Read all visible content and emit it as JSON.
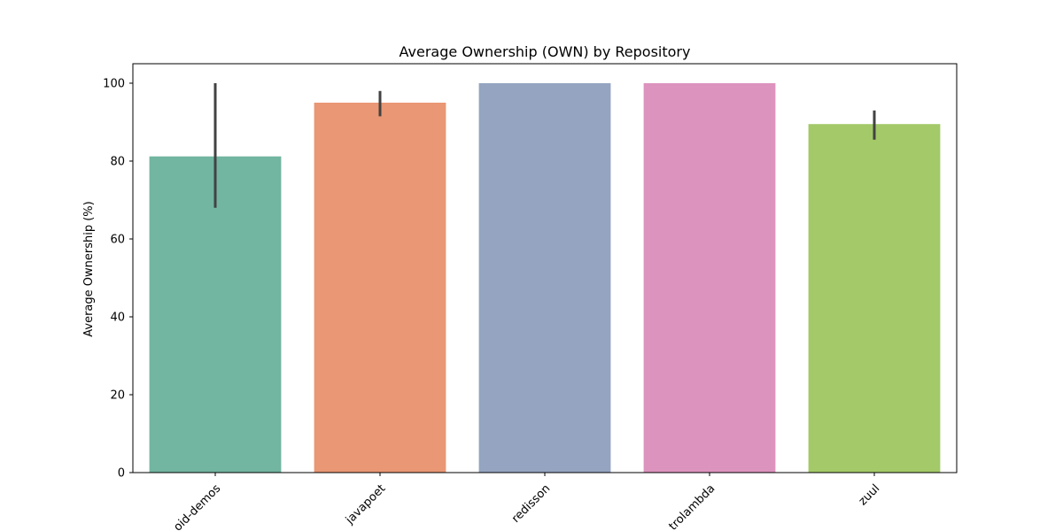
{
  "chart_data": {
    "type": "bar",
    "title": "Average Ownership (OWN) by Repository",
    "xlabel": "",
    "ylabel": "Average Ownership (%)",
    "categories": [
      "android-demos",
      "javapoet",
      "redisson",
      "retrolambda",
      "zuul"
    ],
    "category_labels_visible": [
      "oid-demos",
      "javapoet",
      "redisson",
      "trolambda",
      "zuul"
    ],
    "values": [
      81.2,
      95.0,
      100.0,
      100.0,
      89.5
    ],
    "error_bars": [
      [
        68.0,
        100.0
      ],
      [
        91.5,
        98.0
      ],
      null,
      null,
      [
        85.5,
        93.0
      ]
    ],
    "colors": [
      "#72b5a0",
      "#e99774",
      "#94a4c1",
      "#dc93bd",
      "#a3c968"
    ],
    "error_color": "#424242",
    "ylim": [
      0,
      105
    ],
    "yticks": [
      0,
      20,
      40,
      60,
      80,
      100
    ],
    "grid": false,
    "legend": "none"
  }
}
